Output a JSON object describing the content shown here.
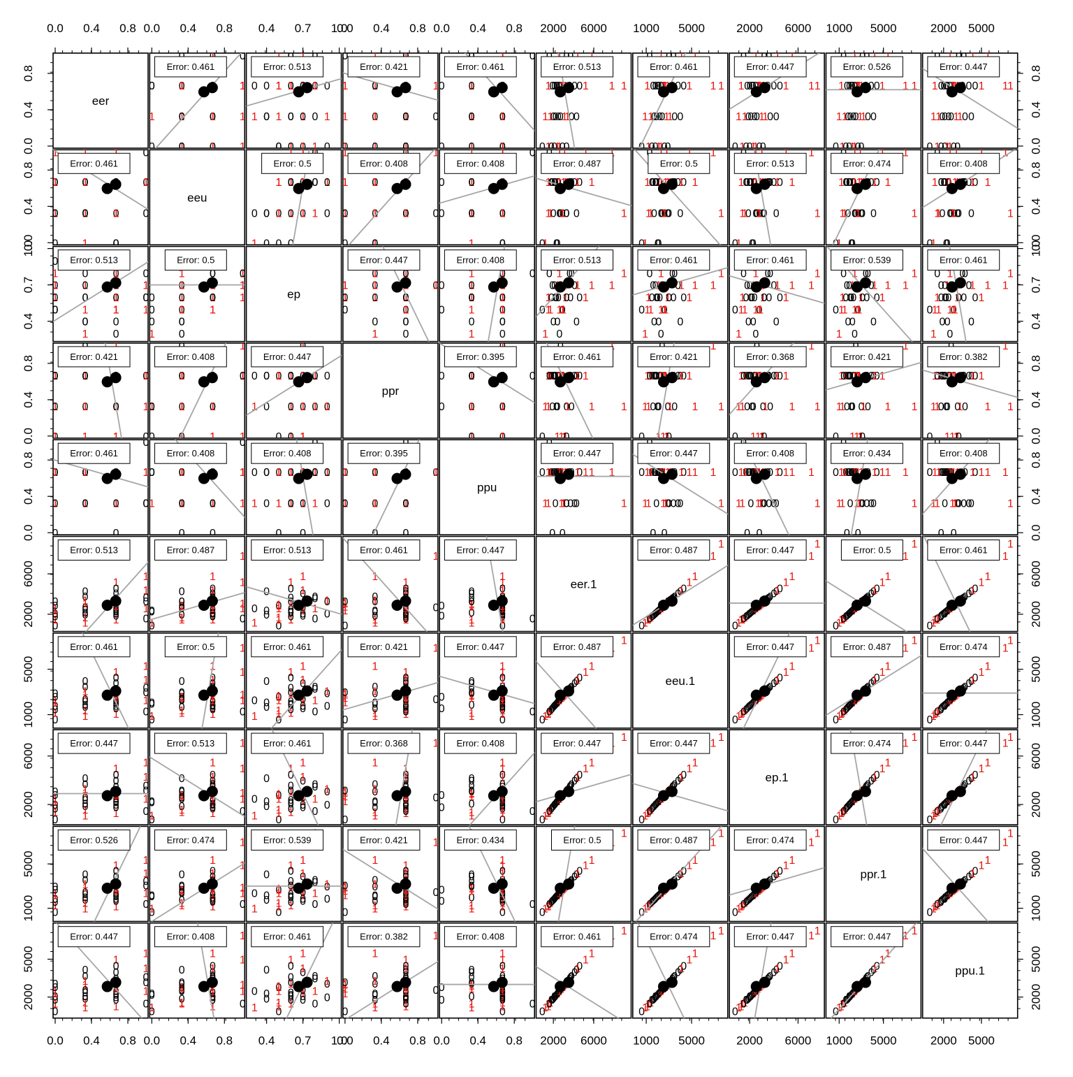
{
  "chart_data": {
    "type": "scatter",
    "kind": "pairs-scatterplot-matrix",
    "variables": [
      "eer",
      "eeu",
      "ep",
      "ppr",
      "ppu",
      "eer.1",
      "eeu.1",
      "ep.1",
      "ppr.1",
      "ppu.1"
    ],
    "axis_ranges": [
      [
        0,
        1
      ],
      [
        0,
        1
      ],
      [
        0.25,
        1.0
      ],
      [
        0,
        1
      ],
      [
        0,
        1
      ],
      [
        500,
        9500
      ],
      [
        0,
        8000
      ],
      [
        500,
        8000
      ],
      [
        0,
        8200
      ],
      [
        500,
        7700
      ]
    ],
    "tick_labels": [
      [
        "0.0",
        "0.4",
        "0.8"
      ],
      [
        "0.0",
        "0.4",
        "0.8"
      ],
      [
        "0.4",
        "0.7",
        "1.0"
      ],
      [
        "0.0",
        "0.4",
        "0.8"
      ],
      [
        "0.0",
        "0.4",
        "0.8"
      ],
      [
        "2000",
        "6000"
      ],
      [
        "1000",
        "5000"
      ],
      [
        "2000",
        "6000"
      ],
      [
        "1000",
        "5000"
      ],
      [
        "2000",
        "5000"
      ]
    ],
    "error_label": "Error:",
    "error_matrix": [
      [
        null,
        "0.461",
        "0.513",
        "0.421",
        "0.461",
        "0.513",
        "0.461",
        "0.447",
        "0.526",
        "0.447"
      ],
      [
        "0.461",
        null,
        "0.5",
        "0.408",
        "0.408",
        "0.487",
        "0.5",
        "0.513",
        "0.474",
        "0.408"
      ],
      [
        "0.513",
        "0.5",
        null,
        "0.447",
        "0.408",
        "0.513",
        "0.461",
        "0.461",
        "0.539",
        "0.461"
      ],
      [
        "0.421",
        "0.408",
        "0.447",
        null,
        "0.395",
        "0.461",
        "0.421",
        "0.368",
        "0.421",
        "0.382"
      ],
      [
        "0.461",
        "0.408",
        "0.408",
        "0.395",
        null,
        "0.447",
        "0.447",
        "0.408",
        "0.434",
        "0.408"
      ],
      [
        "0.513",
        "0.487",
        "0.513",
        "0.461",
        "0.447",
        null,
        "0.487",
        "0.447",
        "0.5",
        "0.461"
      ],
      [
        "0.461",
        "0.5",
        "0.461",
        "0.421",
        "0.447",
        "0.487",
        null,
        "0.447",
        "0.487",
        "0.474"
      ],
      [
        "0.447",
        "0.513",
        "0.461",
        "0.368",
        "0.408",
        "0.447",
        "0.447",
        null,
        "0.474",
        "0.447"
      ],
      [
        "0.526",
        "0.474",
        "0.539",
        "0.421",
        "0.434",
        "0.5",
        "0.487",
        "0.474",
        null,
        "0.447"
      ],
      [
        "0.447",
        "0.408",
        "0.461",
        "0.382",
        "0.408",
        "0.461",
        "0.474",
        "0.447",
        "0.447",
        null
      ]
    ],
    "class_labels": [
      "0",
      "1"
    ],
    "class_colors": [
      "#000000",
      "#e8140c"
    ],
    "centroid_color": "#000000",
    "fit_line_color": "#a6a6a6",
    "centroids": [
      0.62,
      0.62,
      0.7,
      0.62,
      0.62,
      3100,
      2900,
      2900,
      3000,
      3000
    ],
    "observations": {
      "eer": [
        0,
        0,
        0,
        0,
        0,
        0,
        0,
        0,
        0.33,
        0.33,
        0.33,
        0.33,
        0.33,
        0.33,
        0.33,
        0.33,
        0.33,
        0.33,
        0.67,
        0.67,
        0.67,
        0.67,
        0.67,
        0.67,
        0.67,
        0.67,
        0.67,
        0.67,
        0.67,
        0.67,
        0.67,
        0.67,
        0.67,
        0.67,
        1,
        1,
        1,
        1,
        1,
        1
      ],
      "eeu": [
        0,
        0.33,
        0.67,
        1,
        0.33,
        0.67,
        0.67,
        0.33,
        0,
        0.33,
        0.67,
        1,
        0.67,
        0.33,
        0.67,
        0.33,
        0.67,
        0.33,
        0.67,
        0,
        0.33,
        0.67,
        1,
        0.67,
        0.33,
        0.67,
        0.67,
        1,
        0.33,
        0.67,
        0.67,
        0.67,
        0,
        0.33,
        0.67,
        0.67,
        1,
        0.67,
        0.33,
        0.67
      ],
      "ep": [
        0.5,
        0.6,
        0.7,
        0.8,
        0.9,
        0.6,
        0.7,
        0.5,
        0.3,
        0.4,
        0.6,
        0.7,
        0.8,
        0.5,
        0.6,
        0.7,
        0.9,
        0.4,
        0.5,
        0.6,
        0.7,
        0.8,
        0.6,
        0.7,
        0.3,
        0.5,
        0.6,
        0.7,
        0.8,
        0.9,
        0.6,
        0.7,
        0.4,
        0.5,
        0.6,
        0.7,
        0.8,
        0.5,
        0.6,
        0.7
      ],
      "ppr": [
        0,
        0.33,
        0.67,
        0.67,
        0.33,
        0.67,
        0,
        0.67,
        0.33,
        0.67,
        0.67,
        0,
        0.33,
        0.67,
        0.67,
        1,
        0.33,
        0.67,
        0.67,
        0.33,
        0,
        0.67,
        0.67,
        0.33,
        0.67,
        0.67,
        0.67,
        1,
        0.33,
        0.67,
        0,
        0.67,
        0.33,
        0.67,
        0.67,
        0.33,
        0.67,
        0.67,
        0,
        0.67
      ],
      "ppu": [
        0.67,
        0.33,
        0.67,
        0.67,
        0.33,
        0.67,
        0.67,
        0,
        0.33,
        0.67,
        0.67,
        0.33,
        0.67,
        0.67,
        0.33,
        0.67,
        0.67,
        0.33,
        0.67,
        0.67,
        0.33,
        0.67,
        0.67,
        0,
        0.67,
        0.33,
        0.67,
        0.67,
        0.33,
        0.67,
        0.67,
        0.33,
        0.67,
        0.67,
        0.33,
        0.67,
        1,
        0.67,
        0.33,
        0.67
      ],
      "eer.1": [
        900,
        1500,
        2100,
        2600,
        3300,
        1800,
        2400,
        2900,
        1200,
        2000,
        2500,
        3100,
        3800,
        1700,
        2200,
        2700,
        3400,
        4300,
        1500,
        2300,
        2800,
        3600,
        5200,
        1900,
        2600,
        3000,
        4600,
        7800,
        9000,
        2100,
        3200,
        4100,
        2400,
        2900,
        3700,
        5800,
        1600,
        2600,
        3300,
        4400
      ],
      "eeu.1": [
        600,
        1200,
        1800,
        2300,
        2900,
        1500,
        2100,
        2600,
        900,
        1700,
        2200,
        2800,
        3500,
        1400,
        1900,
        2400,
        3100,
        4000,
        1100,
        2000,
        2500,
        3300,
        4800,
        1600,
        2300,
        2700,
        4300,
        6900,
        7600,
        1800,
        2900,
        3800,
        2100,
        2600,
        3400,
        5300,
        1300,
        2300,
        3000,
        4100
      ],
      "ep.1": [
        800,
        1400,
        2000,
        2500,
        3100,
        1700,
        2300,
        2800,
        1100,
        1900,
        2400,
        3000,
        3700,
        1600,
        2100,
        2600,
        3300,
        4200,
        1300,
        2200,
        2700,
        3500,
        5000,
        1800,
        2500,
        2900,
        4500,
        7100,
        7600,
        2000,
        3100,
        4000,
        2300,
        2800,
        3600,
        5500,
        1500,
        2500,
        3200,
        4300
      ],
      "ppr.1": [
        700,
        1300,
        1900,
        2400,
        3000,
        1600,
        2200,
        2700,
        1000,
        1800,
        2300,
        2900,
        3600,
        1500,
        2000,
        2500,
        3200,
        4100,
        1200,
        2100,
        2600,
        3400,
        4900,
        1700,
        2400,
        2800,
        4400,
        7000,
        7800,
        1900,
        3000,
        3900,
        2200,
        2700,
        3500,
        5400,
        1400,
        2400,
        3100,
        4200
      ],
      "ppu.1": [
        900,
        1500,
        2100,
        2500,
        3100,
        1800,
        2300,
        2800,
        1200,
        1900,
        2400,
        3000,
        3700,
        1600,
        2100,
        2600,
        3300,
        4200,
        1300,
        2200,
        2700,
        3500,
        5000,
        1800,
        2500,
        2900,
        4500,
        6900,
        7300,
        2000,
        3100,
        4000,
        2300,
        2800,
        3600,
        5500,
        1500,
        2500,
        3200,
        4300
      ],
      "class": [
        0,
        1,
        0,
        1,
        0,
        0,
        1,
        0,
        1,
        0,
        0,
        1,
        0,
        1,
        0,
        0,
        1,
        0,
        1,
        0,
        1,
        0,
        1,
        0,
        0,
        1,
        0,
        1,
        1,
        0,
        1,
        0,
        0,
        1,
        0,
        1,
        0,
        1,
        0,
        1
      ]
    },
    "grid": false,
    "legend": "none"
  }
}
